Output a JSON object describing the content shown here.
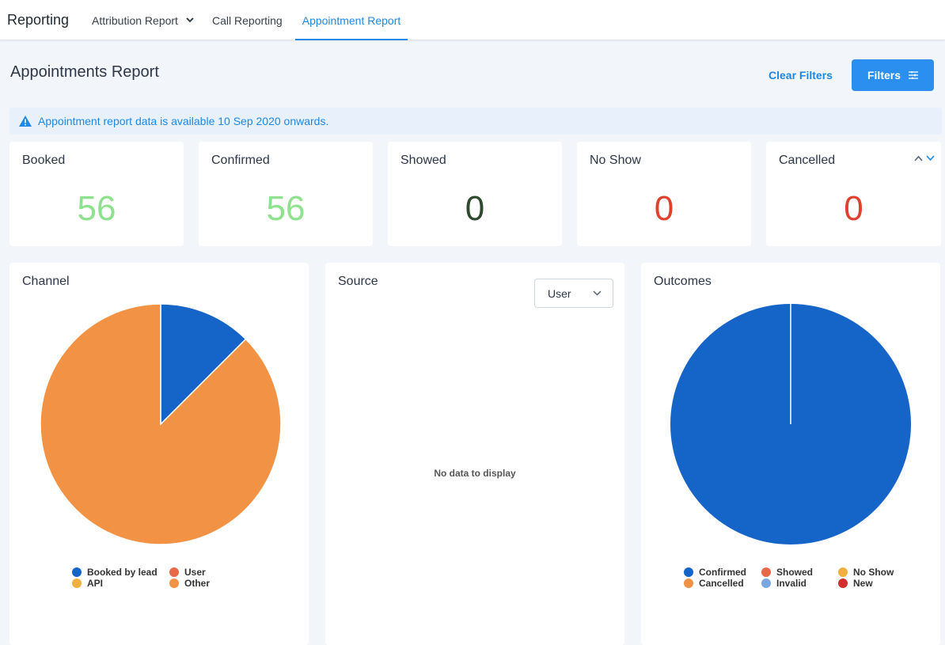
{
  "nav": {
    "brand": "Reporting",
    "tabs": [
      {
        "label": "Attribution Report"
      },
      {
        "label": "Call Reporting"
      },
      {
        "label": "Appointment Report"
      }
    ]
  },
  "header": {
    "title": "Appointments Report",
    "clear_filters": "Clear Filters",
    "filters": "Filters"
  },
  "notice": {
    "text": "Appointment report data is available 10 Sep 2020 onwards."
  },
  "stats": [
    {
      "label": "Booked",
      "value": "56",
      "color": "#8ee28e"
    },
    {
      "label": "Confirmed",
      "value": "56",
      "color": "#8ee28e"
    },
    {
      "label": "Showed",
      "value": "0",
      "color": "#2d4a2d"
    },
    {
      "label": "No Show",
      "value": "0",
      "color": "#e0412e"
    },
    {
      "label": "Cancelled",
      "value": "0",
      "color": "#e0412e"
    }
  ],
  "cards": {
    "channel": {
      "title": "Channel"
    },
    "source": {
      "title": "Source",
      "dropdown_value": "User",
      "empty_text": "No data to display"
    },
    "outcomes": {
      "title": "Outcomes"
    }
  },
  "chart_data": [
    {
      "type": "pie",
      "title": "Channel",
      "series": [
        {
          "name": "Booked by lead",
          "value": 7,
          "color": "#1565c8"
        },
        {
          "name": "User",
          "value": 0,
          "color": "#e8694a"
        },
        {
          "name": "API",
          "value": 0,
          "color": "#f0b040"
        },
        {
          "name": "Other",
          "value": 49,
          "color": "#f29244"
        }
      ]
    },
    {
      "type": "pie",
      "title": "Outcomes",
      "series": [
        {
          "name": "Confirmed",
          "value": 56,
          "color": "#1565c8"
        },
        {
          "name": "Showed",
          "value": 0,
          "color": "#e8694a"
        },
        {
          "name": "No Show",
          "value": 0,
          "color": "#f0b040"
        },
        {
          "name": "Cancelled",
          "value": 0,
          "color": "#f29244"
        },
        {
          "name": "Invalid",
          "value": 0,
          "color": "#7aa7e0"
        },
        {
          "name": "New",
          "value": 0,
          "color": "#d32f2f"
        }
      ]
    }
  ]
}
